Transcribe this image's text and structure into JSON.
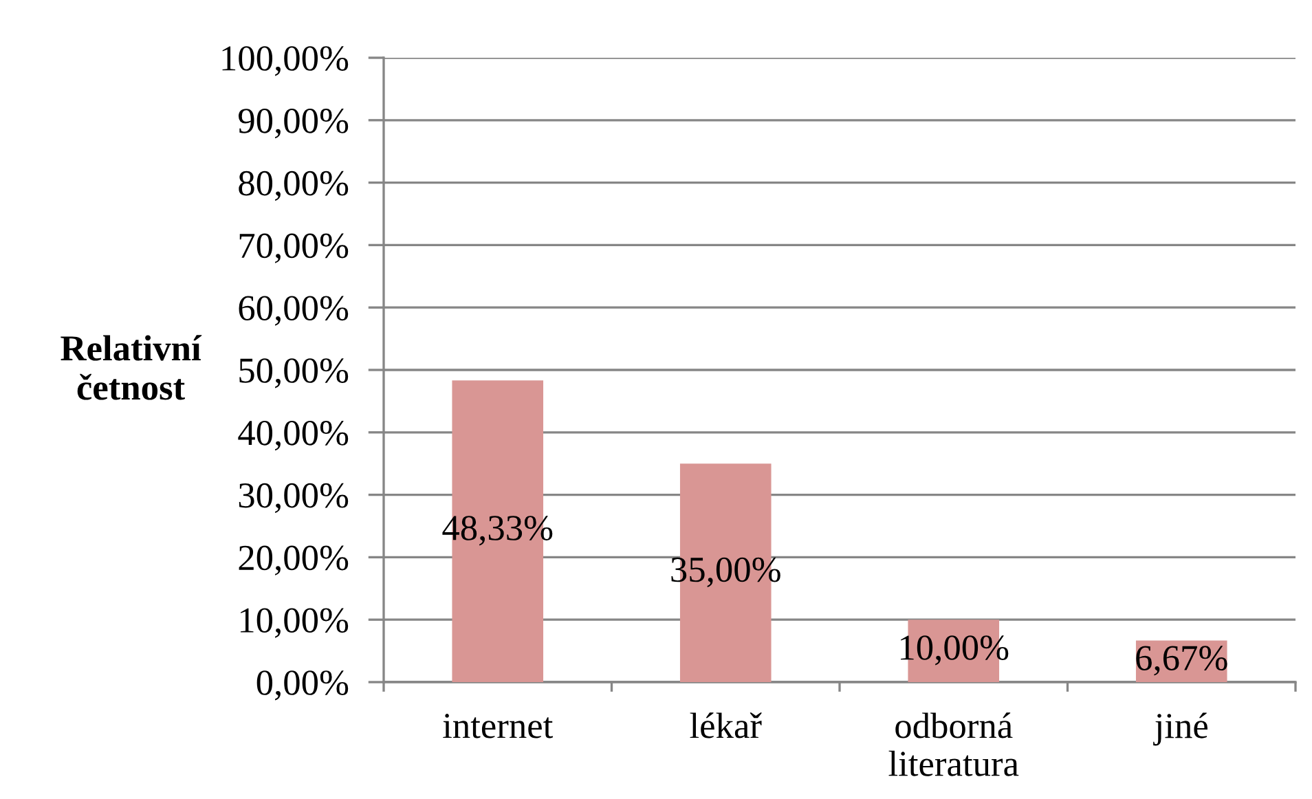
{
  "chart_data": {
    "type": "bar",
    "ylabel": "Relativní\nčetnost",
    "categories": [
      "internet",
      "lékař",
      "odborná\nliteratura",
      "jiné"
    ],
    "values": [
      48.33,
      35.0,
      10.0,
      6.67
    ],
    "value_labels": [
      "48,33%",
      "35,00%",
      "10,00%",
      "6,67%"
    ],
    "color": "#d99694",
    "ylim": [
      0,
      100
    ],
    "yticks": [
      {
        "value": 0,
        "label": "0,00%"
      },
      {
        "value": 10,
        "label": "10,00%"
      },
      {
        "value": 20,
        "label": "20,00%"
      },
      {
        "value": 30,
        "label": "30,00%"
      },
      {
        "value": 40,
        "label": "40,00%"
      },
      {
        "value": 50,
        "label": "50,00%"
      },
      {
        "value": 60,
        "label": "60,00%"
      },
      {
        "value": 70,
        "label": "70,00%"
      },
      {
        "value": 80,
        "label": "80,00%"
      },
      {
        "value": 90,
        "label": "90,00%"
      },
      {
        "value": 100,
        "label": "100,00%"
      }
    ],
    "grid": "y",
    "legend": false
  }
}
